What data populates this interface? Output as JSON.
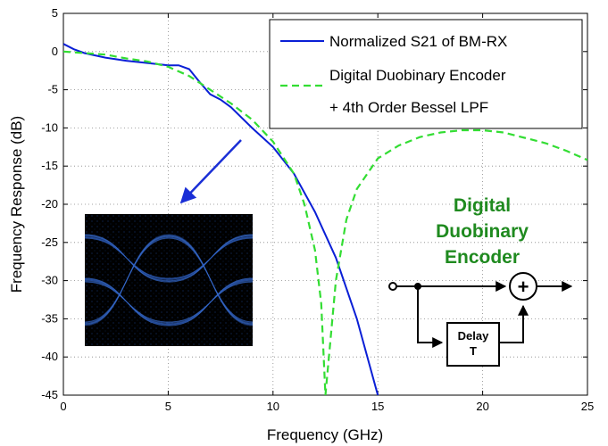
{
  "chart_data": {
    "type": "line",
    "title": "",
    "xlabel": "Frequency (GHz)",
    "ylabel": "Frequency Response (dB)",
    "xlim": [
      0,
      25
    ],
    "ylim": [
      -45,
      5
    ],
    "xticks": [
      0,
      5,
      10,
      15,
      20,
      25
    ],
    "yticks": [
      5,
      0,
      -5,
      -10,
      -15,
      -20,
      -25,
      -30,
      -35,
      -40,
      -45
    ],
    "grid": true,
    "legend_position": "top-right",
    "series": [
      {
        "name": "Normalized S21 of BM-RX",
        "color": "#0a1fd6",
        "style": "solid",
        "x": [
          0,
          0.5,
          1,
          2,
          3,
          4,
          5,
          5.5,
          6,
          6.5,
          7,
          7.5,
          8,
          9,
          10,
          11,
          12,
          13,
          14,
          15
        ],
        "y": [
          1,
          0.3,
          -0.2,
          -0.8,
          -1.2,
          -1.5,
          -1.8,
          -1.8,
          -2.3,
          -4.0,
          -5.6,
          -6.3,
          -7.3,
          -10.0,
          -12.5,
          -16.0,
          -21.0,
          -27.0,
          -35.0,
          -45.0
        ]
      },
      {
        "name": "Digital Duobinary Encoder\n+ 4th Order Bessel LPF",
        "label_lines": [
          "Digital Duobinary Encoder",
          "+ 4th Order Bessel LPF"
        ],
        "color": "#33dd33",
        "style": "dashed",
        "x": [
          0,
          1,
          2,
          3,
          4,
          5,
          6,
          7,
          8,
          9,
          10,
          11,
          11.5,
          12,
          12.3,
          12.5,
          12.7,
          13,
          13.5,
          14,
          15,
          16,
          17,
          18,
          19,
          20,
          21,
          22,
          23,
          24,
          25
        ],
        "y": [
          0,
          -0.2,
          -0.4,
          -0.9,
          -1.3,
          -2.0,
          -3.2,
          -5.0,
          -6.8,
          -8.9,
          -11.8,
          -16.0,
          -20.0,
          -26.0,
          -33.0,
          -45.0,
          -39.0,
          -30.0,
          -22.0,
          -18.0,
          -14.0,
          -12.3,
          -11.2,
          -10.6,
          -10.3,
          -10.3,
          -10.6,
          -11.3,
          -12.0,
          -13.0,
          -14.2
        ]
      }
    ],
    "annotations": {
      "encoder_title": [
        "Digital",
        "Duobinary",
        "Encoder"
      ],
      "delay_label": [
        "Delay",
        "T"
      ],
      "adder_symbol": "+"
    }
  }
}
